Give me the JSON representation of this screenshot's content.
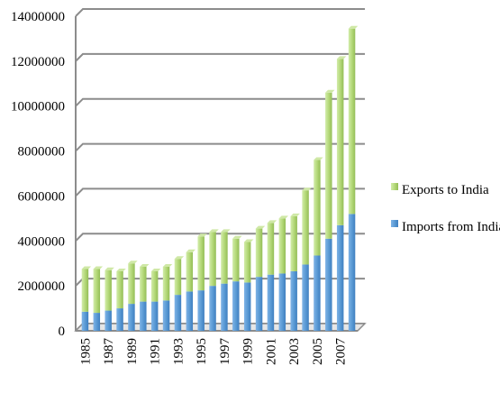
{
  "chart_data": {
    "type": "bar",
    "stacked": true,
    "title": "",
    "xlabel": "",
    "ylabel": "",
    "ylim": [
      0,
      14000000
    ],
    "yticks": [
      0,
      2000000,
      4000000,
      6000000,
      8000000,
      10000000,
      12000000,
      14000000
    ],
    "grid": true,
    "legend_position": "right",
    "categories": [
      "1985",
      "1986",
      "1987",
      "1988",
      "1989",
      "1990",
      "1991",
      "1992",
      "1993",
      "1994",
      "1995",
      "1996",
      "1997",
      "1998",
      "1999",
      "2000",
      "2001",
      "2002",
      "2003",
      "2004",
      "2005",
      "2006",
      "2007",
      "2008"
    ],
    "xtick_labels": [
      "1985",
      "1987",
      "1989",
      "1991",
      "1993",
      "1995",
      "1997",
      "1999",
      "2001",
      "2003",
      "2005",
      "2007"
    ],
    "series": [
      {
        "name": "Imports from India",
        "color": "#5b9bd5",
        "values": [
          850000,
          800000,
          900000,
          1000000,
          1200000,
          1300000,
          1300000,
          1350000,
          1600000,
          1750000,
          1800000,
          2000000,
          2100000,
          2200000,
          2150000,
          2400000,
          2500000,
          2550000,
          2650000,
          2950000,
          3350000,
          4100000,
          4700000,
          5200000
        ]
      },
      {
        "name": "Exports to India",
        "color": "#b5d97a",
        "values": [
          1900000,
          1950000,
          1800000,
          1650000,
          1800000,
          1550000,
          1350000,
          1500000,
          1600000,
          1750000,
          2400000,
          2400000,
          2300000,
          1900000,
          1800000,
          2150000,
          2300000,
          2450000,
          2450000,
          3300000,
          4250000,
          6500000,
          7400000,
          8250000
        ]
      }
    ]
  }
}
